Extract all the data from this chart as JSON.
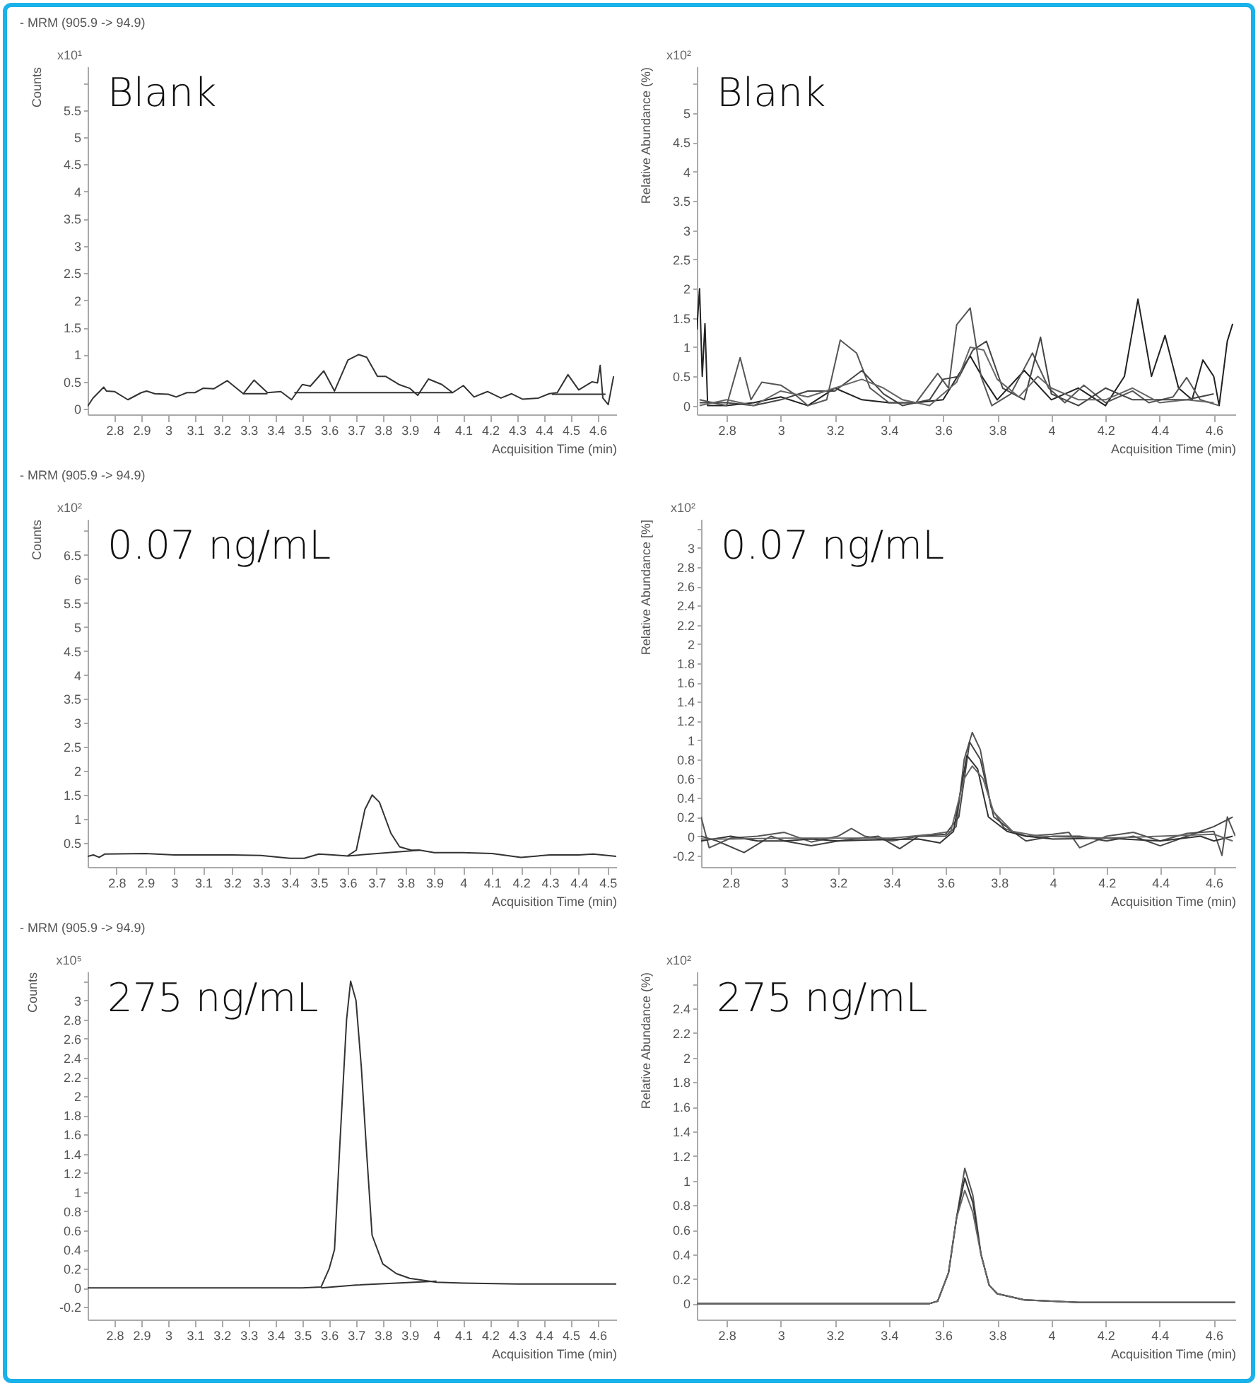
{
  "chart_data": [
    {
      "type": "line",
      "title": "- MRM (905.9 -> 94.9)",
      "xlabel": "Acquisition Time (min)",
      "ylabel": "Counts",
      "annotations": [
        "x10¹",
        "Blank"
      ],
      "xlim": [
        2.7,
        4.67
      ],
      "xticks": [
        2.8,
        2.9,
        3,
        3.1,
        3.2,
        3.3,
        3.4,
        3.5,
        3.6,
        3.7,
        3.8,
        3.9,
        4,
        4.1,
        4.2,
        4.3,
        4.4,
        4.5,
        4.6
      ],
      "ylim": [
        -0.1,
        6.3
      ],
      "yticks": [
        0,
        0.5,
        1,
        1.5,
        2,
        2.5,
        3,
        3.5,
        4,
        4.5,
        5,
        5.5,
        {
          "value": 6,
          "label": null
        }
      ],
      "series": [
        {
          "color": "#333333",
          "x": [
            2.7,
            2.72,
            2.74,
            2.76,
            2.77,
            2.8,
            2.85,
            2.9,
            2.92,
            2.95,
            3.0,
            3.03,
            3.07,
            3.1,
            3.13,
            3.17,
            3.22,
            3.28,
            3.32,
            3.37,
            3.42,
            3.46,
            3.5,
            3.53,
            3.58,
            3.62,
            3.67,
            3.71,
            3.74,
            3.78,
            3.81,
            3.86,
            3.9,
            3.93,
            3.97,
            4.02,
            4.06,
            4.1,
            4.14,
            4.19,
            4.24,
            4.28,
            4.32,
            4.38,
            4.42,
            4.45,
            4.49,
            4.53,
            4.58,
            4.6,
            4.61,
            4.62,
            4.64,
            4.66
          ],
          "values": [
            0.05,
            0.2,
            0.3,
            0.4,
            0.33,
            0.32,
            0.17,
            0.3,
            0.33,
            0.28,
            0.27,
            0.22,
            0.3,
            0.3,
            0.38,
            0.37,
            0.52,
            0.28,
            0.53,
            0.3,
            0.32,
            0.17,
            0.45,
            0.42,
            0.7,
            0.33,
            0.9,
            1.0,
            0.95,
            0.6,
            0.6,
            0.45,
            0.38,
            0.25,
            0.55,
            0.45,
            0.3,
            0.43,
            0.22,
            0.32,
            0.2,
            0.28,
            0.18,
            0.2,
            0.28,
            0.3,
            0.63,
            0.35,
            0.5,
            0.48,
            0.8,
            0.2,
            0.08,
            0.6
          ]
        },
        {
          "color": "#333333",
          "x": [
            3.28,
            3.37
          ],
          "values": [
            0.28,
            0.28
          ]
        },
        {
          "color": "#333333",
          "x": [
            3.47,
            4.06
          ],
          "values": [
            0.3,
            0.3
          ]
        },
        {
          "color": "#333333",
          "x": [
            4.43,
            4.63
          ],
          "values": [
            0.27,
            0.27
          ]
        }
      ]
    },
    {
      "type": "line",
      "xlabel": "Acquisition Time (min)",
      "ylabel": "Relative Abundance (%)",
      "annotations": [
        "x10²",
        "Blank"
      ],
      "xlim": [
        2.69,
        4.68
      ],
      "xticks": [
        2.8,
        3,
        3.2,
        3.4,
        3.6,
        3.8,
        4,
        4.2,
        4.4,
        4.6
      ],
      "ylim": [
        -0.15,
        5.8
      ],
      "yticks": [
        0,
        0.5,
        1,
        1.5,
        2,
        2.5,
        3,
        3.5,
        4,
        4.5,
        5,
        {
          "value": 5.5,
          "label": null
        }
      ],
      "series": [
        {
          "color": "#222222",
          "x": [
            2.69,
            2.7,
            2.71,
            2.72,
            2.73,
            2.8,
            2.9,
            3.0,
            3.1,
            3.2,
            3.3,
            3.4,
            3.5,
            3.6,
            3.7,
            3.75,
            3.8,
            3.9,
            4.0,
            4.1,
            4.2,
            4.27,
            4.32,
            4.37,
            4.42,
            4.47,
            4.52,
            4.56,
            4.6,
            4.62,
            4.65,
            4.67
          ],
          "values": [
            1.3,
            2.0,
            0.5,
            1.4,
            0,
            0,
            0.05,
            0.15,
            0,
            0.3,
            0.1,
            0.05,
            0.05,
            0.1,
            0.85,
            0.45,
            0.1,
            0.6,
            0.1,
            0.3,
            0,
            0.5,
            1.82,
            0.5,
            1.2,
            0.3,
            0.1,
            0.78,
            0.5,
            0,
            1.1,
            1.4
          ]
        },
        {
          "color": "#555555",
          "x": [
            2.7,
            2.8,
            2.85,
            2.89,
            2.93,
            3.0,
            3.05,
            3.1,
            3.17,
            3.22,
            3.28,
            3.33,
            3.4,
            3.5,
            3.58,
            3.62,
            3.65,
            3.7,
            3.74,
            3.78,
            3.85,
            3.93,
            3.99,
            4.05,
            4.12,
            4.2,
            4.3,
            4.36,
            4.45,
            4.5,
            4.55,
            4.62
          ],
          "values": [
            0.1,
            0,
            0.82,
            0.1,
            0.4,
            0.35,
            0.2,
            0,
            0.1,
            1.12,
            0.9,
            0.3,
            0.05,
            0.05,
            0.55,
            0.3,
            1.38,
            1.67,
            0.5,
            0,
            0.2,
            0.9,
            0.3,
            0.05,
            0.35,
            0.05,
            0.25,
            0.05,
            0.15,
            0.48,
            0.1,
            0
          ]
        },
        {
          "color": "#444444",
          "x": [
            2.7,
            2.8,
            2.9,
            3.0,
            3.1,
            3.2,
            3.3,
            3.38,
            3.45,
            3.55,
            3.6,
            3.66,
            3.71,
            3.76,
            3.82,
            3.9,
            3.96,
            4.0,
            4.1,
            4.2,
            4.3,
            4.4,
            4.5,
            4.6
          ],
          "values": [
            0.05,
            0.05,
            0,
            0.1,
            0.25,
            0.25,
            0.6,
            0.2,
            0,
            0.1,
            0.45,
            0.5,
            0.95,
            1.1,
            0.3,
            0.1,
            1.17,
            0.2,
            0,
            0.3,
            0.1,
            0.1,
            0.1,
            0.2
          ]
        },
        {
          "color": "#666666",
          "x": [
            2.7,
            2.8,
            2.9,
            3.0,
            3.1,
            3.2,
            3.3,
            3.38,
            3.45,
            3.55,
            3.65,
            3.7,
            3.75,
            3.8,
            3.88,
            3.95,
            4.0,
            4.1,
            4.2,
            4.3,
            4.4,
            4.5,
            4.6
          ],
          "values": [
            0,
            0.1,
            0,
            0.25,
            0.15,
            0.3,
            0.45,
            0.3,
            0.1,
            0,
            0.4,
            1.0,
            0.95,
            0.45,
            0.15,
            0.5,
            0.3,
            0.1,
            0.1,
            0.3,
            0.05,
            0.1,
            0.05
          ]
        }
      ]
    },
    {
      "type": "line",
      "title": "- MRM (905.9 -> 94.9)",
      "xlabel": "Acquisition Time (min)",
      "ylabel": "Counts",
      "annotations": [
        "x10²",
        "0.07 ng/mL"
      ],
      "xlim": [
        2.7,
        4.53
      ],
      "xticks": [
        2.8,
        2.9,
        3,
        3.1,
        3.2,
        3.3,
        3.4,
        3.5,
        3.6,
        3.7,
        3.8,
        3.9,
        4,
        4.1,
        4.2,
        4.3,
        4.4,
        4.5
      ],
      "ylim": [
        0,
        7.25
      ],
      "yticks": [
        0.5,
        1,
        1.5,
        2,
        2.5,
        3,
        3.5,
        4,
        4.5,
        5,
        5.5,
        6,
        6.5,
        {
          "value": 7,
          "label": null
        }
      ],
      "series": [
        {
          "color": "#333333",
          "x": [
            2.7,
            2.72,
            2.74,
            2.76,
            2.9,
            3.0,
            3.1,
            3.2,
            3.3,
            3.4,
            3.45,
            3.5,
            3.55,
            3.6,
            3.63,
            3.66,
            3.685,
            3.71,
            3.75,
            3.78,
            3.82,
            3.85,
            3.9,
            4.0,
            4.1,
            4.2,
            4.3,
            4.4,
            4.45,
            4.53
          ],
          "values": [
            0.22,
            0.25,
            0.2,
            0.27,
            0.28,
            0.25,
            0.25,
            0.25,
            0.24,
            0.18,
            0.18,
            0.27,
            0.25,
            0.23,
            0.35,
            1.2,
            1.5,
            1.35,
            0.7,
            0.42,
            0.35,
            0.35,
            0.3,
            0.3,
            0.28,
            0.2,
            0.25,
            0.25,
            0.27,
            0.22
          ]
        },
        {
          "color": "#333333",
          "x": [
            3.6,
            3.85
          ],
          "values": [
            0.23,
            0.35
          ]
        }
      ]
    },
    {
      "type": "line",
      "xlabel": "Acquisition Time (min)",
      "ylabel": "Relative Abundance [%]",
      "annotations": [
        "x10²",
        "0.07 ng/mL"
      ],
      "xlim": [
        2.69,
        4.68
      ],
      "xticks": [
        2.8,
        3,
        3.2,
        3.4,
        3.6,
        3.8,
        4,
        4.2,
        4.4,
        4.6
      ],
      "ylim": [
        -0.32,
        3.3
      ],
      "yticks": [
        -0.2,
        0,
        0.2,
        0.4,
        0.6,
        0.8,
        1,
        1.2,
        1.4,
        1.6,
        1.8,
        2,
        2.2,
        2.4,
        2.6,
        2.8,
        3,
        {
          "value": 3.2,
          "label": null
        }
      ],
      "series": [
        {
          "color": "#555555",
          "x": [
            2.69,
            2.72,
            2.8,
            2.9,
            3.0,
            3.1,
            3.2,
            3.25,
            3.3,
            3.4,
            3.5,
            3.6,
            3.64,
            3.67,
            3.7,
            3.73,
            3.77,
            3.82,
            3.9,
            4.0,
            4.06,
            4.1,
            4.2,
            4.3,
            4.4,
            4.5,
            4.6,
            4.63,
            4.65,
            4.68
          ],
          "values": [
            0.2,
            -0.12,
            -0.02,
            0,
            0.04,
            -0.06,
            0,
            0.08,
            0,
            -0.05,
            0,
            0,
            0.1,
            0.8,
            1.08,
            0.9,
            0.3,
            0.08,
            0,
            0.02,
            0.04,
            -0.12,
            0,
            0.04,
            -0.05,
            0.03,
            0.05,
            -0.2,
            0.2,
            0
          ]
        },
        {
          "color": "#444444",
          "x": [
            2.69,
            2.75,
            2.85,
            2.95,
            3.0,
            3.1,
            3.2,
            3.35,
            3.43,
            3.5,
            3.6,
            3.65,
            3.69,
            3.73,
            3.78,
            3.85,
            3.9,
            4.0,
            4.1,
            4.2,
            4.3,
            4.4,
            4.5,
            4.6,
            4.67
          ],
          "values": [
            0,
            -0.05,
            -0.17,
            0,
            -0.05,
            -0.1,
            -0.05,
            0,
            -0.13,
            0,
            0.02,
            0.2,
            0.98,
            0.8,
            0.2,
            0.05,
            -0.05,
            0,
            0,
            -0.05,
            0,
            -0.1,
            0,
            0.1,
            0.2
          ]
        },
        {
          "color": "#333333",
          "x": [
            2.69,
            2.8,
            2.9,
            3.0,
            3.1,
            3.2,
            3.3,
            3.5,
            3.58,
            3.63,
            3.68,
            3.72,
            3.76,
            3.83,
            3.9,
            4.0,
            4.2,
            4.4,
            4.55,
            4.6,
            4.67
          ],
          "values": [
            -0.05,
            0,
            -0.05,
            -0.05,
            -0.03,
            -0.05,
            -0.04,
            -0.03,
            -0.07,
            0.05,
            0.84,
            0.7,
            0.2,
            0.05,
            0,
            -0.03,
            -0.02,
            -0.05,
            0,
            -0.05,
            0
          ]
        },
        {
          "color": "#666666",
          "x": [
            2.69,
            2.8,
            3.0,
            3.2,
            3.4,
            3.55,
            3.62,
            3.67,
            3.7,
            3.74,
            3.78,
            3.85,
            3.95,
            4.2,
            4.4,
            4.6,
            4.67
          ],
          "values": [
            -0.03,
            -0.03,
            -0.02,
            -0.02,
            -0.02,
            0.02,
            0.05,
            0.6,
            0.73,
            0.6,
            0.25,
            0.05,
            0,
            -0.02,
            0,
            0.02,
            -0.05
          ]
        }
      ]
    },
    {
      "type": "line",
      "title": "- MRM (905.9 -> 94.9)",
      "xlabel": "Acquisition Time (min)",
      "ylabel": "Counts",
      "annotations": [
        "x10⁵",
        "275 ng/mL"
      ],
      "xlim": [
        2.7,
        4.67
      ],
      "xticks": [
        2.8,
        2.9,
        3,
        3.1,
        3.2,
        3.3,
        3.4,
        3.5,
        3.6,
        3.7,
        3.8,
        3.9,
        4,
        4.1,
        4.2,
        4.3,
        4.4,
        4.5,
        4.6
      ],
      "ylim": [
        -0.33,
        3.3
      ],
      "yticks": [
        -0.2,
        0,
        0.2,
        0.4,
        0.6,
        0.8,
        1,
        1.2,
        1.4,
        1.6,
        1.8,
        2,
        2.2,
        2.4,
        2.6,
        2.8,
        3,
        {
          "value": 3.2,
          "label": null
        }
      ],
      "series": [
        {
          "color": "#333333",
          "x": [
            2.7,
            3.5,
            3.57,
            3.6,
            3.62,
            3.64,
            3.665,
            3.68,
            3.7,
            3.72,
            3.74,
            3.76,
            3.8,
            3.85,
            3.9,
            3.95,
            4.0,
            4.1,
            4.3,
            4.5,
            4.67
          ],
          "values": [
            0,
            0,
            0.01,
            0.2,
            0.4,
            1.5,
            2.8,
            3.2,
            3.0,
            2.3,
            1.4,
            0.55,
            0.25,
            0.15,
            0.1,
            0.08,
            0.06,
            0.05,
            0.04,
            0.04,
            0.04
          ]
        },
        {
          "color": "#333333",
          "x": [
            3.57,
            3.7,
            3.85,
            4.0
          ],
          "values": [
            0,
            0.03,
            0.05,
            0.07
          ]
        }
      ]
    },
    {
      "type": "line",
      "xlabel": "Acquisition Time (min)",
      "ylabel": "Relative Abundance (%)",
      "annotations": [
        "x10²",
        "275 ng/mL"
      ],
      "xlim": [
        2.69,
        4.68
      ],
      "xticks": [
        2.8,
        3,
        3.2,
        3.4,
        3.6,
        3.8,
        4,
        4.2,
        4.4,
        4.6
      ],
      "ylim": [
        -0.13,
        2.7
      ],
      "yticks": [
        0,
        0.2,
        0.4,
        0.6,
        0.8,
        1,
        1.2,
        1.4,
        1.6,
        1.8,
        2,
        2.2,
        2.4,
        {
          "value": 2.6,
          "label": null
        }
      ],
      "series": [
        {
          "color": "#555555",
          "x": [
            2.69,
            3.55,
            3.58,
            3.62,
            3.65,
            3.68,
            3.71,
            3.74,
            3.77,
            3.8,
            3.9,
            4.0,
            4.1,
            4.68
          ],
          "values": [
            0,
            0,
            0.02,
            0.25,
            0.7,
            1.1,
            0.88,
            0.4,
            0.15,
            0.08,
            0.03,
            0.02,
            0.01,
            0.01
          ]
        },
        {
          "color": "#333333",
          "x": [
            2.69,
            3.55,
            3.58,
            3.62,
            3.65,
            3.68,
            3.71,
            3.74,
            3.77,
            3.8,
            3.9,
            4.0,
            4.1,
            4.68
          ],
          "values": [
            0,
            0,
            0.02,
            0.25,
            0.7,
            1.02,
            0.82,
            0.4,
            0.15,
            0.08,
            0.03,
            0.02,
            0.01,
            0.01
          ]
        },
        {
          "color": "#666666",
          "x": [
            2.69,
            3.55,
            3.58,
            3.62,
            3.65,
            3.68,
            3.71,
            3.74,
            3.77,
            3.8,
            3.9,
            4.0,
            4.1,
            4.68
          ],
          "values": [
            0,
            0,
            0.02,
            0.25,
            0.7,
            0.92,
            0.74,
            0.4,
            0.15,
            0.08,
            0.03,
            0.02,
            0.01,
            0.01
          ]
        }
      ]
    }
  ]
}
